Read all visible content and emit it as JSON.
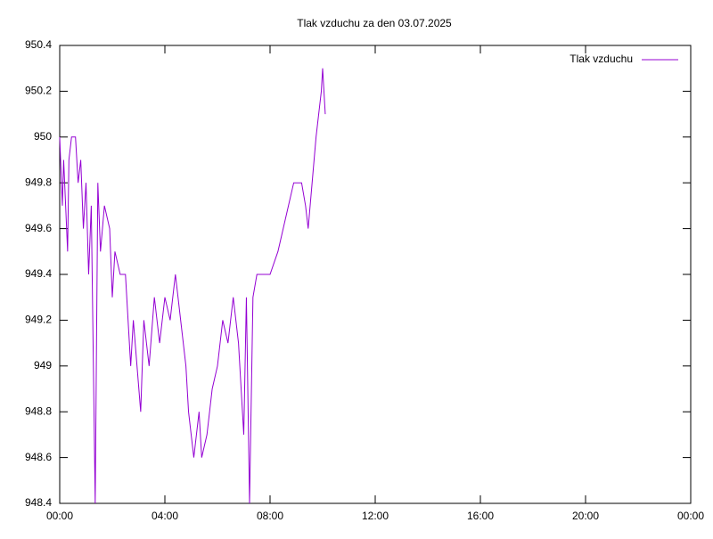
{
  "chart_data": {
    "type": "line",
    "title": "Tlak vzduchu za den 03.07.2025",
    "x": [
      0,
      0.1,
      0.15,
      0.3,
      0.35,
      0.45,
      0.6,
      0.7,
      0.8,
      0.9,
      1.0,
      1.1,
      1.2,
      1.35,
      1.4,
      1.45,
      1.55,
      1.7,
      1.9,
      2.0,
      2.1,
      2.3,
      2.5,
      2.7,
      2.8,
      3.08,
      3.2,
      3.4,
      3.6,
      3.8,
      4.0,
      4.2,
      4.4,
      4.6,
      4.8,
      4.9,
      5.1,
      5.3,
      5.4,
      5.6,
      5.8,
      6.0,
      6.2,
      6.4,
      6.6,
      6.8,
      7.0,
      7.1,
      7.22,
      7.35,
      7.5,
      7.7,
      8.0,
      8.3,
      8.5,
      8.7,
      8.9,
      9.2,
      9.35,
      9.45,
      9.6,
      9.75,
      9.85,
      9.95,
      10.0,
      10.1
    ],
    "series": [
      {
        "name": "Tlak vzduchu",
        "color": "#9400d3",
        "values": [
          950.0,
          949.7,
          949.9,
          949.5,
          949.9,
          950.0,
          950.0,
          949.8,
          949.9,
          949.6,
          949.8,
          949.4,
          949.7,
          948.4,
          949.1,
          949.8,
          949.5,
          949.7,
          949.6,
          949.3,
          949.5,
          949.4,
          949.4,
          949.0,
          949.2,
          948.8,
          949.2,
          949.0,
          949.3,
          949.1,
          949.3,
          949.2,
          949.4,
          949.2,
          949.0,
          948.8,
          948.6,
          948.8,
          948.6,
          948.7,
          948.9,
          949.0,
          949.2,
          949.1,
          949.3,
          949.1,
          948.7,
          949.3,
          948.4,
          949.3,
          949.4,
          949.4,
          949.4,
          949.5,
          949.6,
          949.7,
          949.8,
          949.8,
          949.7,
          949.6,
          949.8,
          950.0,
          950.1,
          950.2,
          950.3,
          950.1
        ]
      }
    ],
    "xlim": [
      0,
      24
    ],
    "xticks": [
      {
        "value": 0,
        "label": "00:00"
      },
      {
        "value": 4,
        "label": "04:00"
      },
      {
        "value": 8,
        "label": "08:00"
      },
      {
        "value": 12,
        "label": "12:00"
      },
      {
        "value": 16,
        "label": "16:00"
      },
      {
        "value": 20,
        "label": "20:00"
      },
      {
        "value": 24,
        "label": "00:00"
      }
    ],
    "ylim": [
      948.4,
      950.4
    ],
    "yticks": [
      948.4,
      948.6,
      948.8,
      949,
      949.2,
      949.4,
      949.6,
      949.8,
      950,
      950.2,
      950.4
    ],
    "legend": "top right"
  }
}
